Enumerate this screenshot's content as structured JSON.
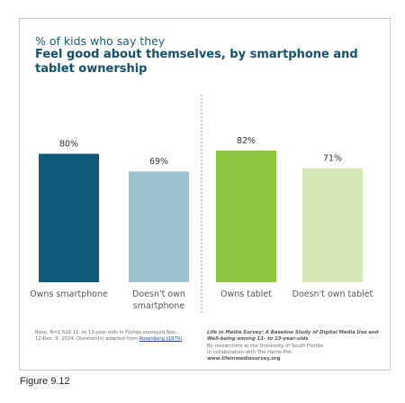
{
  "chart_data": {
    "type": "bar",
    "title_prefix": "% of kids who say they",
    "title": "Feel good about themselves, by smartphone and tablet ownership",
    "xlabel": "",
    "ylabel": "",
    "ylim": [
      0,
      100
    ],
    "grid": false,
    "legend": "none",
    "categories": [
      "Owns smartphone",
      "Doesn't own smartphone",
      "Owns tablet",
      "Doesn't own tablet"
    ],
    "category_lines": [
      [
        "Owns smartphone"
      ],
      [
        "Doesn't own",
        "smartphone"
      ],
      [
        "Owns tablet"
      ],
      [
        "Doesn't own tablet"
      ]
    ],
    "values": [
      80,
      69,
      82,
      71
    ],
    "value_labels": [
      "80%",
      "69%",
      "82%",
      "71%"
    ],
    "groups": [
      {
        "name": "",
        "categories": [
          0,
          1
        ]
      },
      {
        "name": "",
        "categories": [
          2,
          3
        ]
      }
    ],
    "colors": [
      "#0e5a78",
      "#9cc3d0",
      "#8cc63f",
      "#d6e8b4"
    ]
  },
  "footer": {
    "base_text": "Base: N=1,510 11- to 13-year-olds in Florida surveyed Nov. 12-Dec. 9, 2024. Question(s) adapted from ",
    "base_link": "Rosenberg (1979)",
    "base_end": ".",
    "survey_title": "Life in Media Survey: A Baseline Study of Digital Media Use and Well-being among 11- to 13-year-olds",
    "researchers": "By researchers at the University of South Florida",
    "collaboration": "in collaboration with The Harris Poll.",
    "url": "www.lifeinmediasurvey.org"
  },
  "caption": "Figure 9.12"
}
